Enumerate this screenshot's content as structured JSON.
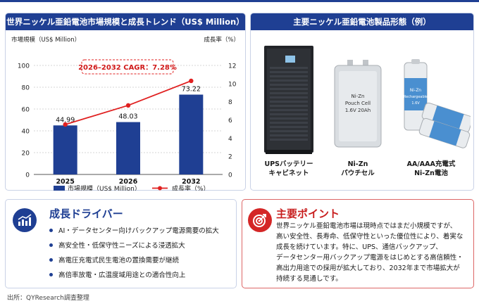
{
  "chart_panel": {
    "title": "世界ニッケル亜鉛電池市場規模と成長トレンド（US$ Million）"
  },
  "chart_data": {
    "type": "bar",
    "categories": [
      "2025",
      "2026",
      "2032"
    ],
    "series": [
      {
        "name": "市場規模（US$ Million）",
        "type": "bar",
        "values": [
          44.99,
          48.03,
          73.22
        ],
        "color": "#1f3f93"
      },
      {
        "name": "成長率（%）",
        "type": "line",
        "axis": "right",
        "values": [
          5.5,
          7.6,
          10.3
        ],
        "color": "#e02020"
      }
    ],
    "left_axis_label": "市場規模（US$ Million）",
    "right_axis_label": "成長率（%）",
    "ylim": [
      0,
      100
    ],
    "yticks": [
      0,
      20,
      40,
      60,
      80,
      100
    ],
    "y2lim": [
      0,
      12
    ],
    "y2ticks": [
      0,
      2,
      4,
      6,
      8,
      10,
      12
    ],
    "cagr_label": "2026–2032 CAGR：7.28%",
    "data_labels": [
      "44.99",
      "48.03",
      "73.22"
    ],
    "legend_position": "bottom"
  },
  "products_panel": {
    "title": "主要ニッケル亜鉛電池製品形態（例）",
    "pouch_text": [
      "Ni-Zn",
      "Pouch Cell",
      "1.6V 20Ah"
    ],
    "cell_text": [
      "Ni-Zn",
      "Rechargeable",
      "1.6V"
    ],
    "items": [
      {
        "line1": "UPSバッテリー",
        "line2": "キャビネット"
      },
      {
        "line1": "Ni-Zn",
        "line2": "パウチセル"
      },
      {
        "line1": "AA/AAA充電式",
        "line2": "Ni-Zn電池"
      }
    ]
  },
  "drivers": {
    "title": "成長ドライバー",
    "items": [
      "AI・データセンター向けバックアップ電源需要の拡大",
      "高安全性・低保守性ニーズによる浸透拡大",
      "高電圧充電式民生電池の置換需要が継続",
      "高倍率放電・広温度域用途との適合性向上"
    ]
  },
  "points": {
    "title": "主要ポイント",
    "lines": [
      "世界ニッケル亜鉛電池市場は現時点ではまだ小規模ですが、",
      "高い安全性、長寿命、低保守性といった優位性により、着実な",
      "成長を続けています。特に、UPS、通信バックアップ、",
      "データセンター用バックアップ電源をはじめとする高信頼性・",
      "高出力用途での採用が拡大しており、2032年まで市場拡大が",
      "持続する見通しです。"
    ]
  },
  "source": "出所：QYResearch調査整理",
  "colors": {
    "brand": "#1f3f93",
    "accent": "#e02020"
  }
}
